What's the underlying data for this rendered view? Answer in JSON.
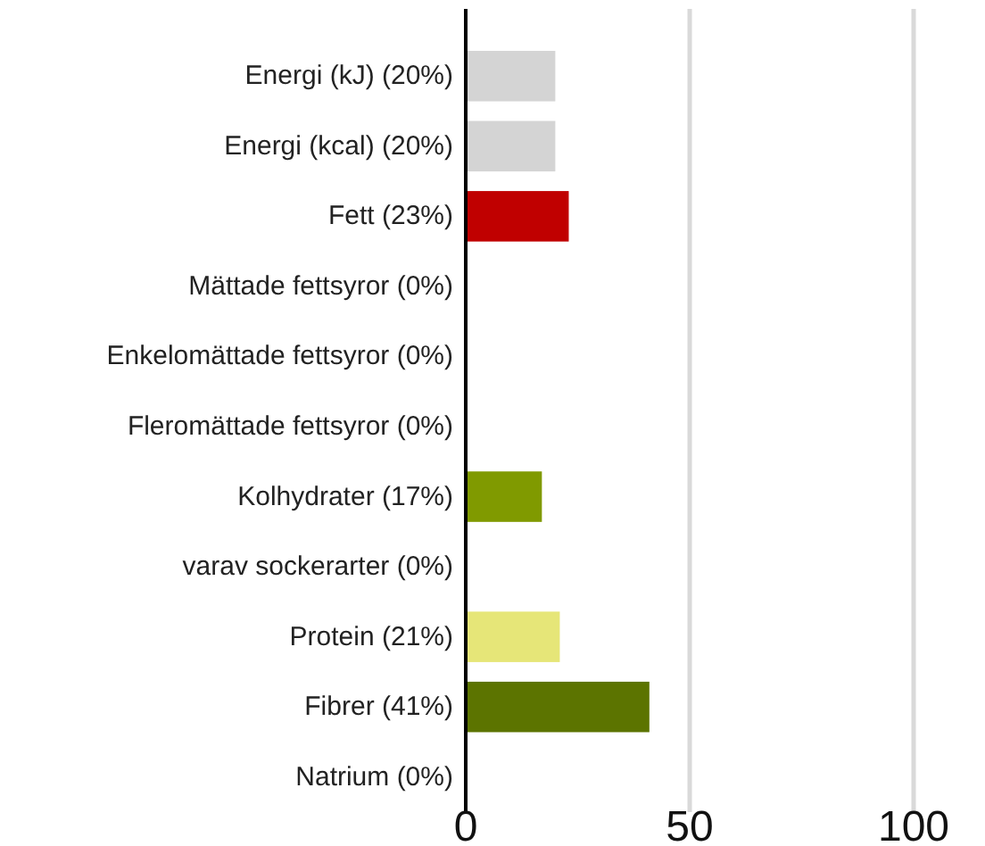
{
  "chart_data": {
    "type": "bar",
    "orientation": "horizontal",
    "categories": [
      "Energi (kJ) (20%)",
      "Energi (kcal) (20%)",
      "Fett (23%)",
      "Mättade fettsyror (0%)",
      "Enkelomättade fettsyror (0%)",
      "Fleromättade fettsyror (0%)",
      "Kolhydrater (17%)",
      "varav sockerarter (0%)",
      "Protein (21%)",
      "Fibrer (41%)",
      "Natrium (0%)"
    ],
    "values": [
      20,
      20,
      23,
      0,
      0,
      0,
      17,
      0,
      21,
      41,
      0
    ],
    "colors": [
      "#d4d4d4",
      "#d4d4d4",
      "#c00000",
      "#c00000",
      "#c00000",
      "#c00000",
      "#809a00",
      "#809a00",
      "#e6e678",
      "#5c7400",
      "#d4d4d4"
    ],
    "xlim": [
      0,
      100
    ],
    "xticks": [
      0,
      50,
      100
    ],
    "grid": "x"
  }
}
